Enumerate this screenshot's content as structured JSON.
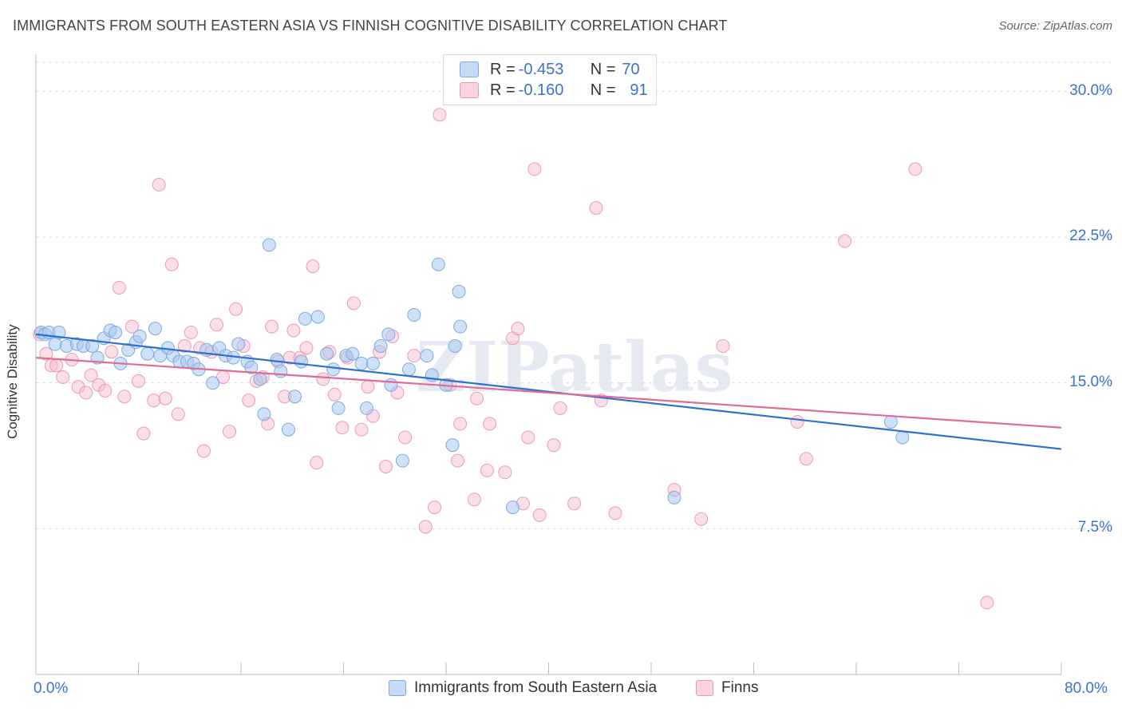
{
  "title": "IMMIGRANTS FROM SOUTH EASTERN ASIA VS FINNISH COGNITIVE DISABILITY CORRELATION CHART",
  "source": "Source: ZipAtlas.com",
  "watermark": "ZIPatlas",
  "legend_top": {
    "rows": [
      {
        "r_label": "R =",
        "r_value": "-0.453",
        "n_label": "N =",
        "n_value": "70",
        "color": "#a8c8f0"
      },
      {
        "r_label": "R =",
        "r_value": "-0.160",
        "n_label": "N =",
        "n_value": "91",
        "color": "#f5b8cc"
      }
    ]
  },
  "legend_bottom": {
    "items": [
      {
        "label": "Immigrants from South Eastern Asia",
        "color": "#a8c8f0"
      },
      {
        "label": "Finns",
        "color": "#f5b8cc"
      }
    ]
  },
  "chart_data": {
    "type": "scatter",
    "title": "IMMIGRANTS FROM SOUTH EASTERN ASIA VS FINNISH COGNITIVE DISABILITY CORRELATION CHART",
    "xlabel": "",
    "ylabel": "Cognitive Disability",
    "xlim": [
      0,
      80
    ],
    "ylim": [
      0,
      31.5
    ],
    "x_tick_labels": [
      "0.0%",
      "80.0%"
    ],
    "y_ticks": [
      7.5,
      15.0,
      22.5,
      30.0
    ],
    "y_tick_labels": [
      "7.5%",
      "15.0%",
      "22.5%",
      "30.0%"
    ],
    "grid": "horizontal dashed",
    "series": [
      {
        "name": "Immigrants from South Eastern Asia",
        "color": "#a8c8f0",
        "line_color": "#2f6fd0",
        "trend": {
          "x": [
            0,
            80
          ],
          "y": [
            17.5,
            11.6
          ]
        },
        "points": [
          [
            0.4,
            17.6
          ],
          [
            0.7,
            17.5
          ],
          [
            1.0,
            17.6
          ],
          [
            1.5,
            17.0
          ],
          [
            1.8,
            17.6
          ],
          [
            2.4,
            16.9
          ],
          [
            3.2,
            17.0
          ],
          [
            3.7,
            16.9
          ],
          [
            4.4,
            16.9
          ],
          [
            4.8,
            16.3
          ],
          [
            5.3,
            17.3
          ],
          [
            5.8,
            17.7
          ],
          [
            6.2,
            17.6
          ],
          [
            6.6,
            16.0
          ],
          [
            7.2,
            16.7
          ],
          [
            7.8,
            17.1
          ],
          [
            8.1,
            17.4
          ],
          [
            8.7,
            16.5
          ],
          [
            9.3,
            17.8
          ],
          [
            9.7,
            16.4
          ],
          [
            10.3,
            16.8
          ],
          [
            10.7,
            16.4
          ],
          [
            11.2,
            16.1
          ],
          [
            11.8,
            16.1
          ],
          [
            12.3,
            16.0
          ],
          [
            12.7,
            15.7
          ],
          [
            13.3,
            16.7
          ],
          [
            13.8,
            15.0
          ],
          [
            14.3,
            16.8
          ],
          [
            14.8,
            16.4
          ],
          [
            15.4,
            16.3
          ],
          [
            15.8,
            17.0
          ],
          [
            16.5,
            16.1
          ],
          [
            16.8,
            15.8
          ],
          [
            17.5,
            15.2
          ],
          [
            17.8,
            13.4
          ],
          [
            18.2,
            22.1
          ],
          [
            18.8,
            16.2
          ],
          [
            19.1,
            15.6
          ],
          [
            19.7,
            12.6
          ],
          [
            20.2,
            14.3
          ],
          [
            20.7,
            16.1
          ],
          [
            21.0,
            18.3
          ],
          [
            22.0,
            18.4
          ],
          [
            22.7,
            16.5
          ],
          [
            23.2,
            15.7
          ],
          [
            23.6,
            13.7
          ],
          [
            24.2,
            16.4
          ],
          [
            24.7,
            16.5
          ],
          [
            25.4,
            16.0
          ],
          [
            25.8,
            13.7
          ],
          [
            26.3,
            16.0
          ],
          [
            26.9,
            16.9
          ],
          [
            27.5,
            17.5
          ],
          [
            27.7,
            14.9
          ],
          [
            28.6,
            11.0
          ],
          [
            29.1,
            15.7
          ],
          [
            29.5,
            18.5
          ],
          [
            30.5,
            16.4
          ],
          [
            30.9,
            15.4
          ],
          [
            31.4,
            21.1
          ],
          [
            32.0,
            14.9
          ],
          [
            32.5,
            11.8
          ],
          [
            32.7,
            16.9
          ],
          [
            33.0,
            19.7
          ],
          [
            33.1,
            17.9
          ],
          [
            37.2,
            8.6
          ],
          [
            49.8,
            9.1
          ],
          [
            66.7,
            13.0
          ],
          [
            67.6,
            12.2
          ]
        ]
      },
      {
        "name": "Finns",
        "color": "#f5b8cc",
        "line_color": "#e06b95",
        "trend": {
          "x": [
            0,
            80
          ],
          "y": [
            16.3,
            12.7
          ]
        },
        "points": [
          [
            0.3,
            17.5
          ],
          [
            0.8,
            16.5
          ],
          [
            1.2,
            15.9
          ],
          [
            1.6,
            15.9
          ],
          [
            2.1,
            15.3
          ],
          [
            2.8,
            16.2
          ],
          [
            3.3,
            14.8
          ],
          [
            3.9,
            14.5
          ],
          [
            4.3,
            15.4
          ],
          [
            4.9,
            14.9
          ],
          [
            5.4,
            14.6
          ],
          [
            5.9,
            16.6
          ],
          [
            6.5,
            19.9
          ],
          [
            6.9,
            14.3
          ],
          [
            7.5,
            17.9
          ],
          [
            8.0,
            15.1
          ],
          [
            8.4,
            12.4
          ],
          [
            9.2,
            14.1
          ],
          [
            9.6,
            25.2
          ],
          [
            10.1,
            14.2
          ],
          [
            10.6,
            21.1
          ],
          [
            11.1,
            13.4
          ],
          [
            11.6,
            16.9
          ],
          [
            12.1,
            17.6
          ],
          [
            12.8,
            16.8
          ],
          [
            13.1,
            11.5
          ],
          [
            13.7,
            16.6
          ],
          [
            14.1,
            18.0
          ],
          [
            14.6,
            15.3
          ],
          [
            15.1,
            12.5
          ],
          [
            15.6,
            18.8
          ],
          [
            16.2,
            16.9
          ],
          [
            16.6,
            14.1
          ],
          [
            17.2,
            15.1
          ],
          [
            17.7,
            15.3
          ],
          [
            18.1,
            12.9
          ],
          [
            18.4,
            17.9
          ],
          [
            18.9,
            16.1
          ],
          [
            19.4,
            14.3
          ],
          [
            19.8,
            16.3
          ],
          [
            20.1,
            17.7
          ],
          [
            20.6,
            16.3
          ],
          [
            21.1,
            16.8
          ],
          [
            21.6,
            21.0
          ],
          [
            21.9,
            10.9
          ],
          [
            22.4,
            15.2
          ],
          [
            22.9,
            16.6
          ],
          [
            23.3,
            14.4
          ],
          [
            23.9,
            12.7
          ],
          [
            24.3,
            16.3
          ],
          [
            24.8,
            19.1
          ],
          [
            25.4,
            12.6
          ],
          [
            25.9,
            14.8
          ],
          [
            26.3,
            13.3
          ],
          [
            26.8,
            16.6
          ],
          [
            27.3,
            10.7
          ],
          [
            27.8,
            17.4
          ],
          [
            28.2,
            14.5
          ],
          [
            28.8,
            12.2
          ],
          [
            29.5,
            16.4
          ],
          [
            30.4,
            7.6
          ],
          [
            31.1,
            8.6
          ],
          [
            31.5,
            28.8
          ],
          [
            32.3,
            14.9
          ],
          [
            32.9,
            11.0
          ],
          [
            33.1,
            12.9
          ],
          [
            34.2,
            9.0
          ],
          [
            34.4,
            14.2
          ],
          [
            35.2,
            10.5
          ],
          [
            35.4,
            12.9
          ],
          [
            36.6,
            10.4
          ],
          [
            37.2,
            17.3
          ],
          [
            37.6,
            17.8
          ],
          [
            38.0,
            8.8
          ],
          [
            38.4,
            12.2
          ],
          [
            38.9,
            26.0
          ],
          [
            39.3,
            8.2
          ],
          [
            40.4,
            11.8
          ],
          [
            40.9,
            13.7
          ],
          [
            42.0,
            8.8
          ],
          [
            43.7,
            24.0
          ],
          [
            44.1,
            14.1
          ],
          [
            45.2,
            8.3
          ],
          [
            49.8,
            9.5
          ],
          [
            51.9,
            8.0
          ],
          [
            53.6,
            16.9
          ],
          [
            59.4,
            13.0
          ],
          [
            60.1,
            11.1
          ],
          [
            63.1,
            22.3
          ],
          [
            68.6,
            26.0
          ],
          [
            74.2,
            3.7
          ]
        ]
      }
    ]
  }
}
